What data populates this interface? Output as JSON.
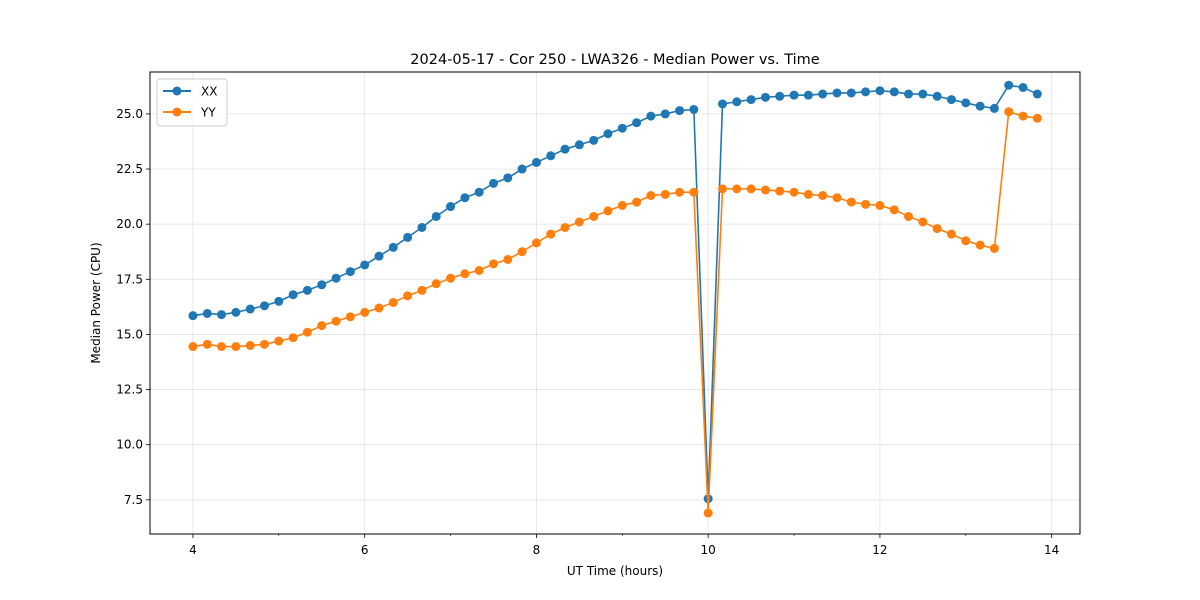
{
  "chart_data": {
    "type": "line",
    "title": "2024-05-17 - Cor 250 - LWA326 - Median Power vs. Time",
    "xlabel": "UT Time (hours)",
    "ylabel": "Median Power (CPU)",
    "xlim": [
      3.5,
      14.33
    ],
    "ylim": [
      5.95,
      26.9
    ],
    "xticks": [
      4,
      6,
      8,
      10,
      12,
      14
    ],
    "yticks": [
      7.5,
      10.0,
      12.5,
      15.0,
      17.5,
      20.0,
      22.5,
      25.0
    ],
    "xtick_labels": [
      "4",
      "6",
      "8",
      "10",
      "12",
      "14"
    ],
    "ytick_labels": [
      "7.5",
      "10.0",
      "12.5",
      "15.0",
      "17.5",
      "20.0",
      "22.5",
      "25.0"
    ],
    "grid": true,
    "legend_position": "top-left",
    "x": [
      4.0,
      4.167,
      4.333,
      4.5,
      4.667,
      4.833,
      5.0,
      5.167,
      5.333,
      5.5,
      5.667,
      5.833,
      6.0,
      6.167,
      6.333,
      6.5,
      6.667,
      6.833,
      7.0,
      7.167,
      7.333,
      7.5,
      7.667,
      7.833,
      8.0,
      8.167,
      8.333,
      8.5,
      8.667,
      8.833,
      9.0,
      9.167,
      9.333,
      9.5,
      9.667,
      9.833,
      10.0,
      10.167,
      10.333,
      10.5,
      10.667,
      10.833,
      11.0,
      11.167,
      11.333,
      11.5,
      11.667,
      11.833,
      12.0,
      12.167,
      12.333,
      12.5,
      12.667,
      12.833,
      13.0,
      13.167,
      13.333,
      13.5,
      13.667,
      13.833
    ],
    "series": [
      {
        "name": "XX",
        "color": "#1f77b4",
        "values": [
          15.85,
          15.95,
          15.9,
          16.0,
          16.15,
          16.3,
          16.5,
          16.8,
          17.0,
          17.25,
          17.55,
          17.85,
          18.15,
          18.55,
          18.95,
          19.4,
          19.85,
          20.35,
          20.8,
          21.2,
          21.45,
          21.85,
          22.1,
          22.5,
          22.8,
          23.1,
          23.4,
          23.6,
          23.8,
          24.1,
          24.35,
          24.6,
          24.9,
          25.0,
          25.15,
          25.2,
          7.55,
          25.45,
          25.55,
          25.65,
          25.75,
          25.8,
          25.85,
          25.85,
          25.9,
          25.95,
          25.95,
          26.0,
          26.05,
          26.0,
          25.9,
          25.9,
          25.8,
          25.65,
          25.5,
          25.35,
          25.25,
          26.3,
          26.2,
          25.9
        ]
      },
      {
        "name": "YY",
        "color": "#ff7f0e",
        "values": [
          14.45,
          14.55,
          14.45,
          14.45,
          14.5,
          14.55,
          14.7,
          14.85,
          15.1,
          15.4,
          15.6,
          15.8,
          16.0,
          16.2,
          16.45,
          16.75,
          17.0,
          17.3,
          17.55,
          17.75,
          17.9,
          18.2,
          18.4,
          18.75,
          19.15,
          19.55,
          19.85,
          20.1,
          20.35,
          20.6,
          20.85,
          21.0,
          21.3,
          21.35,
          21.45,
          21.45,
          6.9,
          21.6,
          21.6,
          21.6,
          21.55,
          21.5,
          21.45,
          21.35,
          21.3,
          21.2,
          21.0,
          20.9,
          20.85,
          20.65,
          20.35,
          20.1,
          19.8,
          19.55,
          19.25,
          19.05,
          18.9,
          25.1,
          24.9,
          24.8
        ]
      }
    ]
  }
}
